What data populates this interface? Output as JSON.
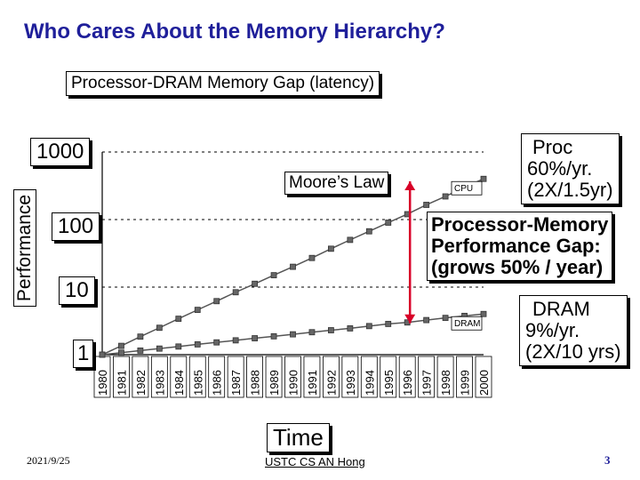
{
  "slide": {
    "title": "Who Cares About the Memory Hierarchy?",
    "footer_date": "2021/9/25",
    "footer_center": "USTC CS AN Hong",
    "page_number": "3"
  },
  "chart_data": {
    "type": "line",
    "title": "Processor-DRAM Memory Gap (latency)",
    "xlabel": "Time",
    "ylabel": "Performance",
    "y_scale": "log",
    "ylim": [
      1,
      1000
    ],
    "yticks": [
      "1",
      "10",
      "100",
      "1000"
    ],
    "categories": [
      "1980",
      "1981",
      "1982",
      "1983",
      "1984",
      "1985",
      "1986",
      "1987",
      "1988",
      "1989",
      "1990",
      "1991",
      "1992",
      "1993",
      "1994",
      "1995",
      "1996",
      "1997",
      "1998",
      "1999",
      "2000"
    ],
    "grid": "dashed horizontal",
    "series": [
      {
        "name": "CPU",
        "color": "#555555",
        "values": [
          1,
          1.35,
          1.85,
          2.5,
          3.4,
          4.6,
          6.2,
          8.4,
          11.2,
          15,
          20,
          27,
          37,
          50,
          67,
          90,
          120,
          165,
          220,
          300,
          400
        ]
      },
      {
        "name": "DRAM",
        "color": "#555555",
        "values": [
          1,
          1.07,
          1.15,
          1.23,
          1.32,
          1.42,
          1.52,
          1.63,
          1.75,
          1.87,
          2.0,
          2.15,
          2.3,
          2.45,
          2.65,
          2.85,
          3.0,
          3.25,
          3.5,
          3.75,
          4.0
        ]
      }
    ],
    "annotations": {
      "moores_law": "Moore’s Law",
      "proc": [
        "Proc",
        "60%/yr.",
        "(2X/1.5yr)"
      ],
      "gap": [
        "Processor-Memory",
        "Performance Gap:",
        "(grows 50% / year)"
      ],
      "dram": [
        "DRAM",
        "9%/yr.",
        "(2X/10 yrs)"
      ]
    }
  }
}
